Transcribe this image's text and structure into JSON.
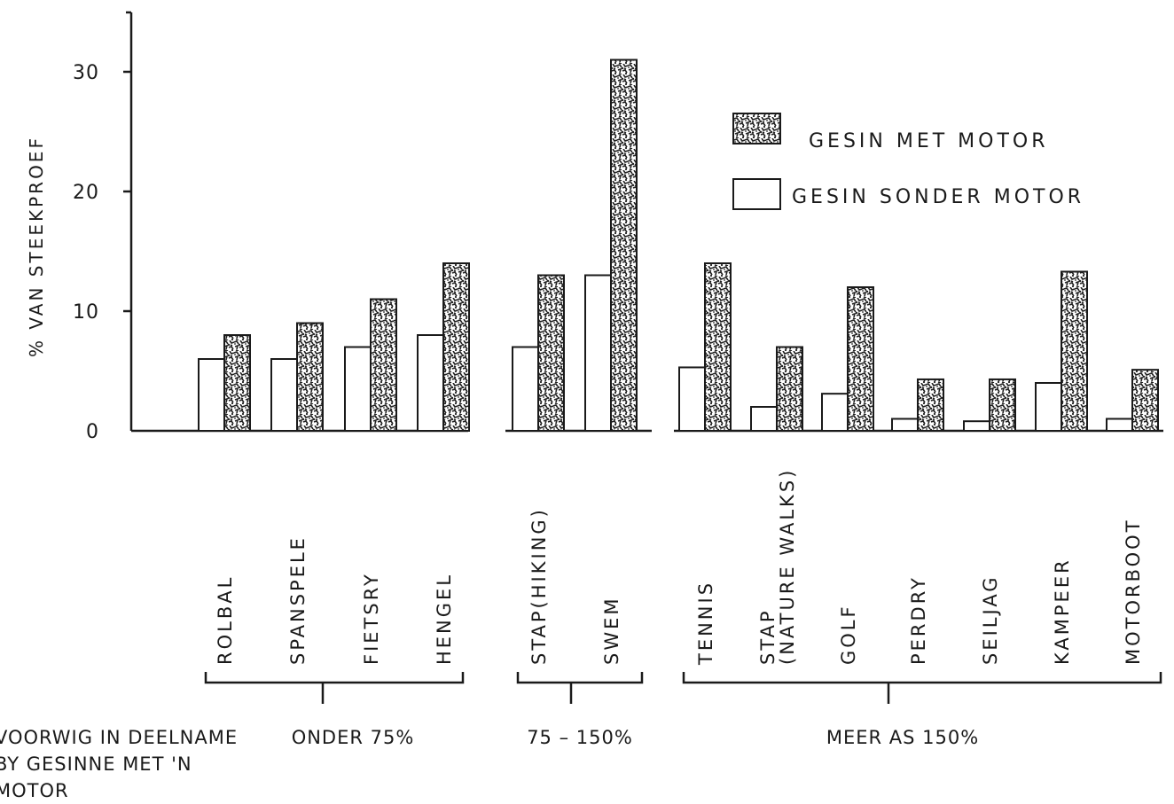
{
  "chart_data": {
    "type": "bar",
    "ylabel": "% VAN STEEKPROEF",
    "ylim": [
      0,
      35
    ],
    "yticks": [
      0,
      10,
      20,
      30
    ],
    "grid": false,
    "legend_position": "top-right",
    "categories": [
      {
        "label": "ROLBAL",
        "group": 0
      },
      {
        "label": "SPANSPELE",
        "group": 0
      },
      {
        "label": "FIETSRY",
        "group": 0
      },
      {
        "label": "HENGEL",
        "group": 0
      },
      {
        "label": "STAP(HIKING)",
        "group": 1
      },
      {
        "label": "SWEM",
        "group": 1
      },
      {
        "label": "TENNIS",
        "group": 2
      },
      {
        "label": "STAP\n(NATURE WALKS)",
        "group": 2
      },
      {
        "label": "GOLF",
        "group": 2
      },
      {
        "label": "PERDRY",
        "group": 2
      },
      {
        "label": "SEILJAG",
        "group": 2
      },
      {
        "label": "KAMPEER",
        "group": 2
      },
      {
        "label": "MOTORBOOT",
        "group": 2
      }
    ],
    "series": [
      {
        "name": "GESIN SONDER MOTOR",
        "fill": "#ffffff",
        "values": [
          6,
          6,
          7,
          8,
          7,
          13,
          5.3,
          2,
          3.1,
          1,
          0.8,
          4,
          1
        ]
      },
      {
        "name": "GESIN MET MOTOR",
        "fill": "stipple",
        "values": [
          8,
          9,
          11,
          14,
          13,
          31,
          14,
          7,
          12,
          4.3,
          4.3,
          13.3,
          5.1
        ]
      }
    ],
    "groups": [
      {
        "label": "ONDER 75%"
      },
      {
        "label": "75  –  150%"
      },
      {
        "label": "MEER AS  150%"
      }
    ],
    "group_caption": [
      "VOORWIG IN DEELNAME",
      "BY GESINNE MET 'N",
      "MOTOR"
    ]
  }
}
